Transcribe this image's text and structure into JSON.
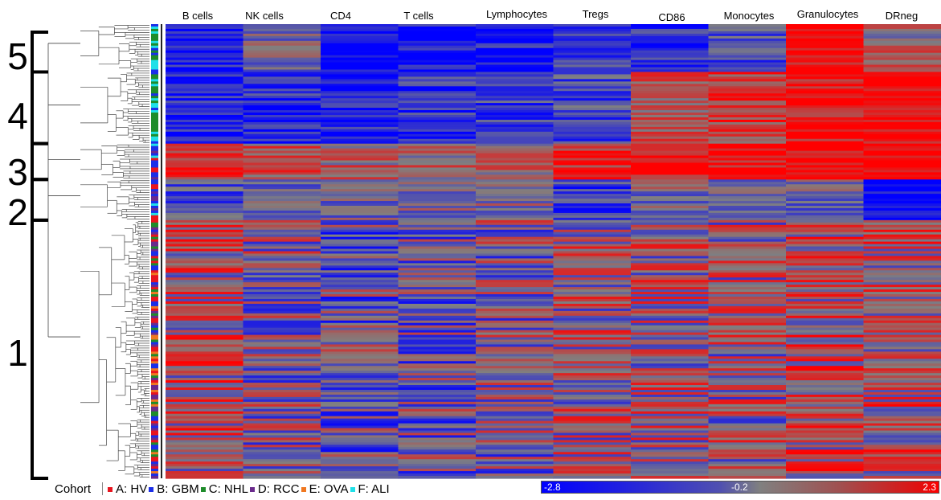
{
  "chart_data": {
    "type": "heatmap",
    "columns": [
      "B cells",
      "NK cells",
      "CD4",
      "T cells",
      "Lymphocytes",
      "Tregs",
      "CD86",
      "Monocytes",
      "Granulocytes",
      "DRneg"
    ],
    "clusters": [
      {
        "label": "5",
        "rows": [
          0,
          20
        ]
      },
      {
        "label": "4",
        "rows": [
          20,
          50
        ]
      },
      {
        "label": "3",
        "rows": [
          50,
          65
        ]
      },
      {
        "label": "2",
        "rows": [
          65,
          82
        ]
      },
      {
        "label": "1",
        "rows": [
          82,
          190
        ]
      }
    ],
    "num_rows": 190,
    "cluster_profiles": [
      [
        -2.2,
        -0.6,
        -2.5,
        -2.4,
        -2.3,
        -1.8,
        -2.0,
        -1.2,
        1.8,
        0.2
      ],
      [
        -2.2,
        -2.0,
        -2.2,
        -1.8,
        -1.6,
        -1.4,
        0.6,
        1.2,
        2.0,
        2.3
      ],
      [
        1.3,
        0.8,
        0.4,
        0.3,
        0.2,
        1.6,
        1.9,
        1.8,
        2.2,
        2.3
      ],
      [
        -1.2,
        -0.8,
        -0.6,
        -0.3,
        -0.2,
        -1.6,
        -0.4,
        -0.5,
        -0.6,
        -2.6
      ],
      [
        0.4,
        -0.3,
        -0.8,
        -0.6,
        -0.4,
        0.1,
        0.1,
        0.0,
        0.5,
        0.5
      ]
    ],
    "color_scale": {
      "min": -2.8,
      "mid": -0.2,
      "max": 2.3,
      "low_color": "#0000ff",
      "mid_color": "#808080",
      "high_color": "#ff0000"
    },
    "legend": {
      "title": "Cohort",
      "items": [
        {
          "label": "A: HV",
          "color": "#e8141e"
        },
        {
          "label": "B: GBM",
          "color": "#1a2ee8"
        },
        {
          "label": "C: NHL",
          "color": "#1e8c2a"
        },
        {
          "label": "D: RCC",
          "color": "#6a2a8c"
        },
        {
          "label": "E: OVA",
          "color": "#f07820"
        },
        {
          "label": "F: ALI",
          "color": "#20e0e8"
        }
      ]
    },
    "scale_labels": {
      "min": "-2.8",
      "mid": "-0.2",
      "max": "2.3"
    }
  }
}
